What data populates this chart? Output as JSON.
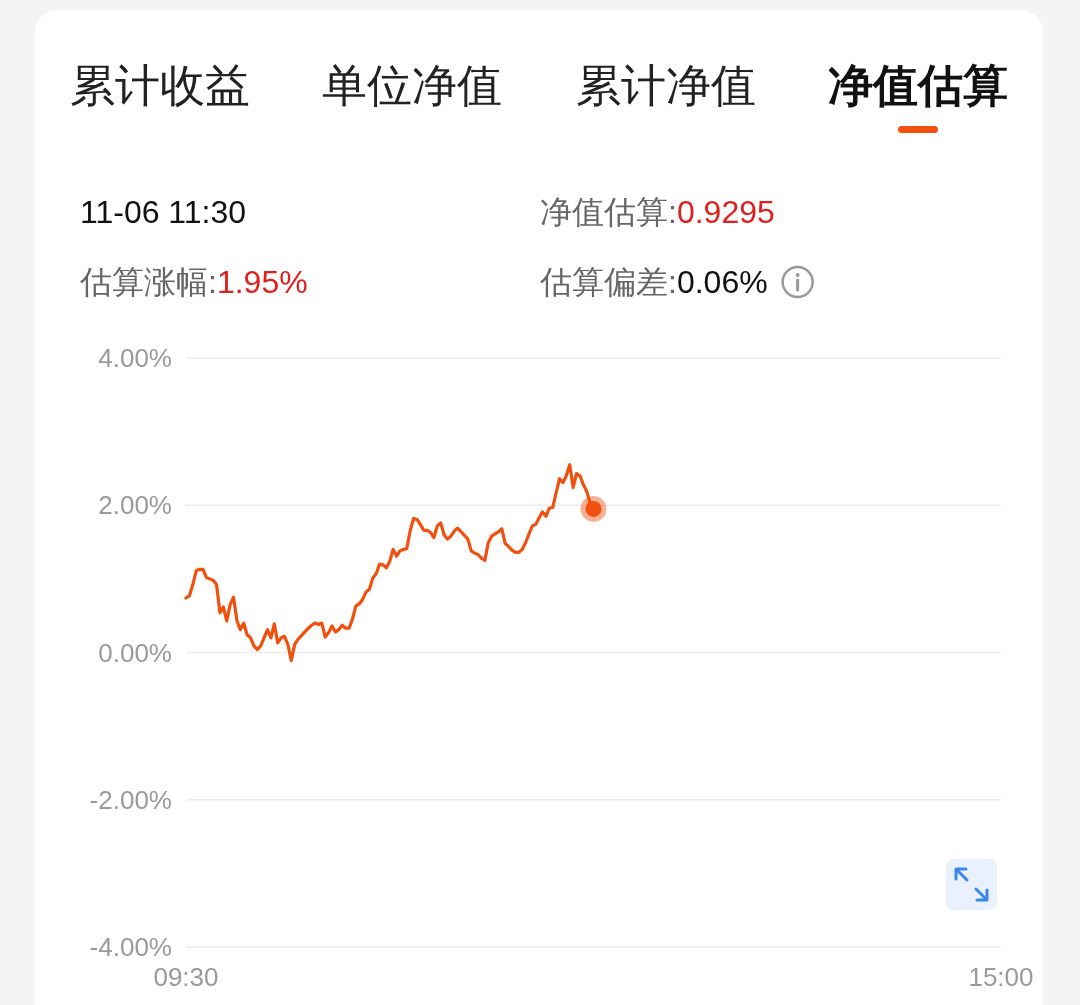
{
  "chart_data": {
    "type": "line",
    "annotations": [
      "累计收益",
      "单位净值",
      "累计净值",
      "净值估算",
      "11-06 11:30",
      "净值估算:0.9295",
      "估算涨幅:1.95%",
      "估算偏差:0.06%"
    ],
    "categories": [
      "09:30",
      null,
      null,
      null,
      null,
      null,
      null,
      null,
      null,
      null,
      null,
      null,
      null,
      null,
      null,
      null,
      null,
      null,
      null,
      null,
      null,
      null,
      null,
      null,
      null,
      null,
      null,
      null,
      null,
      null,
      null,
      null,
      null,
      null,
      null,
      null,
      null,
      null,
      null,
      null,
      null,
      null,
      null,
      null,
      null,
      null,
      null,
      null,
      null,
      null,
      null,
      null,
      null,
      null,
      null,
      null,
      null,
      null,
      null,
      null,
      null,
      null,
      null,
      null,
      null,
      null,
      null,
      null,
      null,
      null,
      null,
      null,
      null,
      null,
      null,
      null,
      null,
      null,
      null,
      null,
      null,
      null,
      null,
      null,
      null,
      null,
      null,
      null,
      null,
      null,
      null,
      null,
      null,
      null,
      null,
      null,
      null,
      null,
      null,
      null,
      null,
      null,
      null,
      null,
      null,
      null,
      null,
      null,
      null,
      null,
      null,
      null,
      null,
      null,
      null,
      null,
      null,
      null,
      null,
      null,
      null,
      null,
      null,
      null,
      null,
      null,
      null,
      null,
      null,
      null,
      null,
      null,
      null,
      null,
      null,
      null,
      null,
      null,
      null,
      null,
      null,
      null,
      null,
      null,
      null,
      null,
      null,
      null,
      null,
      null,
      null,
      null,
      null,
      null,
      null,
      null,
      null,
      null,
      null,
      null,
      null,
      null,
      null,
      null,
      null,
      null,
      null,
      null,
      null,
      null,
      null,
      null,
      null,
      null,
      null,
      null,
      null,
      null,
      null,
      null,
      null,
      null,
      null,
      null,
      null,
      null,
      null,
      null,
      null,
      null,
      null,
      null,
      null,
      null,
      null,
      null,
      null,
      null,
      null,
      null,
      null,
      null,
      null,
      null,
      null,
      null,
      null,
      null,
      null,
      null,
      null,
      null,
      null,
      null,
      null,
      null,
      null,
      null,
      null,
      null,
      null,
      null,
      null,
      null,
      null,
      null,
      null,
      null,
      null,
      null,
      null,
      null,
      null,
      null,
      null,
      null,
      null,
      null,
      null,
      null,
      "15:00"
    ],
    "ylim": [
      -4,
      4
    ],
    "yticks": [
      {
        "value": -4,
        "label": "-4.00%"
      },
      {
        "value": -2,
        "label": "-2.00%"
      },
      {
        "value": 0,
        "label": "0.00%"
      },
      {
        "value": 2,
        "label": "2.00%"
      },
      {
        "value": 4,
        "label": "4.00%"
      }
    ],
    "grid": "y",
    "series": [
      {
        "color": "#f2500f",
        "values": [
          0.74,
          0.77,
          0.92,
          1.11,
          1.13,
          1.13,
          1.02,
          1.0,
          0.98,
          0.92,
          0.54,
          0.62,
          0.43,
          0.65,
          0.75,
          0.43,
          0.31,
          0.4,
          0.24,
          0.2,
          0.09,
          0.04,
          0.09,
          0.2,
          0.31,
          0.2,
          0.39,
          0.13,
          0.2,
          0.22,
          0.11,
          -0.11,
          0.11,
          0.18,
          0.23,
          0.28,
          0.33,
          0.37,
          0.4,
          0.38,
          0.4,
          0.21,
          0.27,
          0.36,
          0.28,
          0.31,
          0.37,
          0.33,
          0.33,
          0.45,
          0.63,
          0.66,
          0.72,
          0.82,
          0.86,
          1.01,
          1.07,
          1.2,
          1.19,
          1.15,
          1.24,
          1.4,
          1.31,
          1.38,
          1.4,
          1.41,
          1.65,
          1.82,
          1.81,
          1.74,
          1.66,
          1.66,
          1.63,
          1.56,
          1.72,
          1.76,
          1.6,
          1.54,
          1.58,
          1.65,
          1.69,
          1.64,
          1.59,
          1.54,
          1.38,
          1.35,
          1.33,
          1.28,
          1.25,
          1.49,
          1.58,
          1.61,
          1.64,
          1.68,
          1.48,
          1.44,
          1.39,
          1.36,
          1.36,
          1.4,
          1.49,
          1.61,
          1.72,
          1.74,
          1.83,
          1.91,
          1.85,
          1.96,
          1.97,
          2.17,
          2.36,
          2.31,
          2.4,
          2.55,
          2.24,
          2.43,
          2.4,
          2.28,
          2.19,
          2.03,
          1.95,
          null,
          null,
          null,
          null,
          null,
          null,
          null,
          null,
          null,
          null,
          null,
          null,
          null,
          null,
          null,
          null,
          null,
          null,
          null,
          null,
          null,
          null,
          null,
          null,
          null,
          null,
          null,
          null,
          null,
          null,
          null,
          null,
          null,
          null,
          null,
          null,
          null,
          null,
          null,
          null,
          null,
          null,
          null,
          null,
          null,
          null,
          null,
          null,
          null,
          null,
          null,
          null,
          null,
          null,
          null,
          null,
          null,
          null,
          null,
          null,
          null,
          null,
          null,
          null,
          null,
          null,
          null,
          null,
          null,
          null,
          null,
          null,
          null,
          null,
          null,
          null,
          null,
          null,
          null,
          null,
          null,
          null,
          null,
          null,
          null,
          null,
          null,
          null,
          null,
          null,
          null,
          null,
          null,
          null,
          null,
          null,
          null,
          null,
          null,
          null,
          null,
          null,
          null,
          null,
          null,
          null,
          null,
          null,
          null,
          null,
          null,
          null,
          null,
          null,
          null,
          null,
          null,
          null,
          null,
          null
        ]
      },
      {
        "type": "scatter",
        "color": "#f2500f",
        "values": [
          null,
          null,
          null,
          null,
          null,
          null,
          null,
          null,
          null,
          null,
          null,
          null,
          null,
          null,
          null,
          null,
          null,
          null,
          null,
          null,
          null,
          null,
          null,
          null,
          null,
          null,
          null,
          null,
          null,
          null,
          null,
          null,
          null,
          null,
          null,
          null,
          null,
          null,
          null,
          null,
          null,
          null,
          null,
          null,
          null,
          null,
          null,
          null,
          null,
          null,
          null,
          null,
          null,
          null,
          null,
          null,
          null,
          null,
          null,
          null,
          null,
          null,
          null,
          null,
          null,
          null,
          null,
          null,
          null,
          null,
          null,
          null,
          null,
          null,
          null,
          null,
          null,
          null,
          null,
          null,
          null,
          null,
          null,
          null,
          null,
          null,
          null,
          null,
          null,
          null,
          null,
          null,
          null,
          null,
          null,
          null,
          null,
          null,
          null,
          null,
          null,
          null,
          null,
          null,
          null,
          null,
          null,
          null,
          null,
          null,
          null,
          null,
          null,
          null,
          null,
          null,
          null,
          null,
          null,
          null,
          1.95,
          null,
          null,
          null,
          null,
          null,
          null,
          null,
          null,
          null,
          null,
          null,
          null,
          null,
          null,
          null,
          null,
          null,
          null,
          null,
          null,
          null,
          null,
          null,
          null,
          null,
          null,
          null,
          null,
          null,
          null,
          null,
          null,
          null,
          null,
          null,
          null,
          null,
          null,
          null,
          null,
          null,
          null,
          null,
          null,
          null,
          null,
          null,
          null,
          null,
          null,
          null,
          null,
          null,
          null,
          null,
          null,
          null,
          null,
          null,
          null,
          null,
          null,
          null,
          null,
          null,
          null,
          null,
          null,
          null,
          null,
          null,
          null,
          null,
          null,
          null,
          null,
          null,
          null,
          null,
          null,
          null,
          null,
          null,
          null,
          null,
          null,
          null,
          null,
          null,
          null,
          null,
          null,
          null,
          null,
          null,
          null,
          null,
          null,
          null,
          null,
          null,
          null,
          null,
          null,
          null,
          null,
          null,
          null,
          null,
          null,
          null,
          null,
          null,
          null,
          null,
          null,
          null,
          null,
          null,
          null
        ]
      }
    ]
  }
}
